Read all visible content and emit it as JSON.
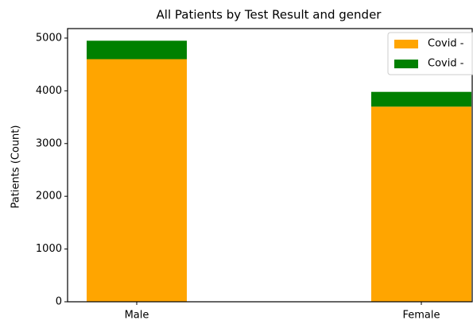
{
  "chart_data": {
    "type": "stacked-bar",
    "title": "All Patients by Test Result and gender",
    "y_label": "Patients (Count)",
    "categories": [
      "Male",
      "Female"
    ],
    "series": [
      {
        "name": "Covid -",
        "color": "#ffa500",
        "values": [
          4600,
          3700
        ]
      },
      {
        "name": "Covid -",
        "color": "#008000",
        "values": [
          350,
          280
        ]
      }
    ],
    "ylim": [
      0,
      5180
    ],
    "yticks": [
      0,
      1000,
      2000,
      3000,
      4000,
      5000
    ],
    "grid": false,
    "legend": "upper right"
  }
}
